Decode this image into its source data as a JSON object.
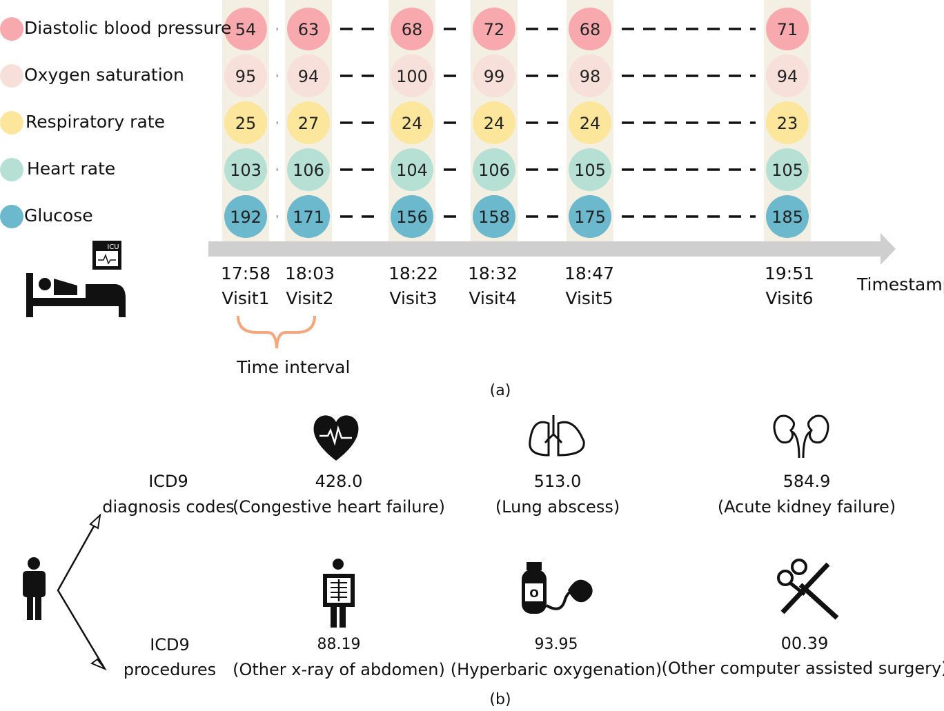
{
  "panel_a": {
    "caption": "(a)",
    "legend": [
      {
        "label": "Diastolic blood pressure",
        "color": "#f8a9ad"
      },
      {
        "label": "Oxygen saturation",
        "color": "#f8e0da"
      },
      {
        "label": "Respiratory rate",
        "color": "#fbe69c"
      },
      {
        "label": "Heart rate",
        "color": "#b7e0d5"
      },
      {
        "label": "Glucose",
        "color": "#6cb8cc"
      }
    ],
    "visits": [
      {
        "time": "17:58",
        "name": "Visit1",
        "values": [
          "54",
          "95",
          "25",
          "103",
          "192"
        ]
      },
      {
        "time": "18:03",
        "name": "Visit2",
        "values": [
          "63",
          "94",
          "27",
          "106",
          "171"
        ]
      },
      {
        "time": "18:22",
        "name": "Visit3",
        "values": [
          "68",
          "100",
          "24",
          "104",
          "156"
        ]
      },
      {
        "time": "18:32",
        "name": "Visit4",
        "values": [
          "72",
          "99",
          "24",
          "106",
          "158"
        ]
      },
      {
        "time": "18:47",
        "name": "Visit5",
        "values": [
          "68",
          "98",
          "24",
          "105",
          "175"
        ]
      },
      {
        "time": "19:51",
        "name": "Visit6",
        "values": [
          "71",
          "94",
          "23",
          "105",
          "185"
        ]
      }
    ],
    "axis_label": "Timestamp",
    "interval_label": "Time interval",
    "icu_label": "ICU",
    "column_bg": "#f3efe3",
    "arrow_color": "#cfcfcf",
    "brace_color": "#f5a67a"
  },
  "panel_b": {
    "caption": "(b)",
    "row1_label": [
      "ICD9",
      "diagnosis codes"
    ],
    "row2_label": [
      "ICD9",
      "procedures"
    ],
    "diagnoses": [
      {
        "code": "428.0",
        "desc": "(Congestive heart failure)",
        "icon": "heart-icon"
      },
      {
        "code": "513.0",
        "desc": "(Lung abscess)",
        "icon": "lungs-icon"
      },
      {
        "code": "584.9",
        "desc": "(Acute kidney failure)",
        "icon": "kidneys-icon"
      }
    ],
    "procedures": [
      {
        "code": "88.19",
        "desc": "(Other x-ray of abdomen)",
        "icon": "xray-icon"
      },
      {
        "code": "93.95",
        "desc": "(Hyperbaric oxygenation)",
        "icon": "oxygen-tank-icon"
      },
      {
        "code": "00.39",
        "desc": "(Other computer assisted surgery)",
        "icon": "surgery-tools-icon"
      }
    ],
    "o2_label": "O"
  }
}
